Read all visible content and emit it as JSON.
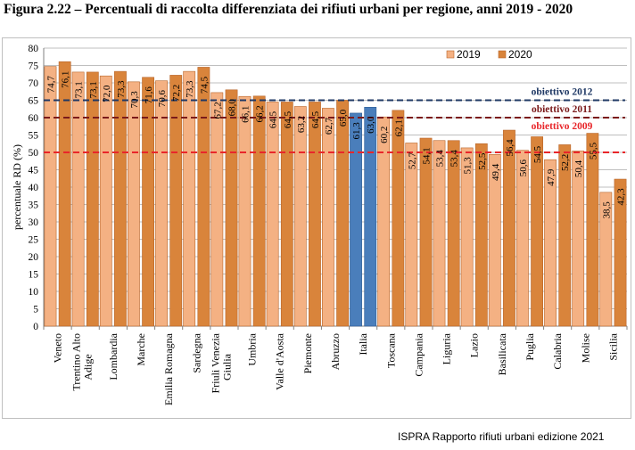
{
  "figure_title": "Figura 2.22 – Percentuali di raccolta differenziata dei rifiuti urbani per regione, anni 2019 - 2020",
  "source_note": "ISPRA Rapporto rifiuti urbani edizione 2021",
  "chart_data": {
    "type": "bar",
    "ylabel": "percentuale RD (%)",
    "ylim": [
      0,
      80
    ],
    "yticks": [
      0,
      5,
      10,
      15,
      20,
      25,
      30,
      35,
      40,
      45,
      50,
      55,
      60,
      65,
      70,
      75,
      80
    ],
    "grid": true,
    "legend_position": "top-right",
    "categories": [
      "Veneto",
      "Trentino Alto Adige",
      "Lombardia",
      "Marche",
      "Emilia Romagna",
      "Sardegna",
      "Friuli Venezia Giulia",
      "Umbria",
      "Valle d'Aosta",
      "Piemonte",
      "Abruzzo",
      "Italia",
      "Toscana",
      "Campania",
      "Liguria",
      "Lazio",
      "Basilicata",
      "Puglia",
      "Calabria",
      "Molise",
      "Sicilia"
    ],
    "series": [
      {
        "name": "2019",
        "color": "#f4b183",
        "highlight_color": "#4a7ebb",
        "values": [
          74.7,
          73.1,
          72.0,
          70.3,
          70.6,
          73.3,
          67.2,
          66.1,
          64.5,
          63.2,
          62.7,
          61.3,
          60.2,
          52.7,
          53.4,
          51.3,
          49.4,
          50.6,
          47.9,
          50.4,
          38.5
        ],
        "labels": [
          "74,7",
          "73,1",
          "72,0",
          "70,3",
          "70,6",
          "73,3",
          "67,2",
          "66,1",
          "64,5",
          "63,2",
          "62,7",
          "61,3",
          "60,2",
          "52,7",
          "53,4",
          "51,3",
          "49,4",
          "50,6",
          "47,9",
          "50,4",
          "38,5"
        ]
      },
      {
        "name": "2020",
        "color": "#d9843b",
        "highlight_color": "#4a7ebb",
        "values": [
          76.1,
          73.1,
          73.3,
          71.6,
          72.2,
          74.5,
          68.0,
          66.2,
          64.5,
          64.5,
          65.0,
          63.0,
          62.1,
          54.1,
          53.4,
          52.5,
          56.4,
          54.5,
          52.2,
          55.5,
          42.3
        ],
        "labels": [
          "76,1",
          "73,1",
          "73,3",
          "71,6",
          "72,2",
          "74,5",
          "68,0",
          "66,2",
          "64,5",
          "64,5",
          "65,0",
          "63,0",
          "62,1",
          "54,1",
          "53,4",
          "52,5",
          "56,4",
          "54,5",
          "52,2",
          "55,5",
          "42,3"
        ]
      }
    ],
    "highlight_category": "Italia",
    "target_lines": [
      {
        "label": "obiettivo 2012",
        "value": 65,
        "color": "#1f3864"
      },
      {
        "label": "obiettivo 2011",
        "value": 60,
        "color": "#7b1a1a"
      },
      {
        "label": "obiettivo 2009",
        "value": 50,
        "color": "#e8262a"
      }
    ]
  }
}
